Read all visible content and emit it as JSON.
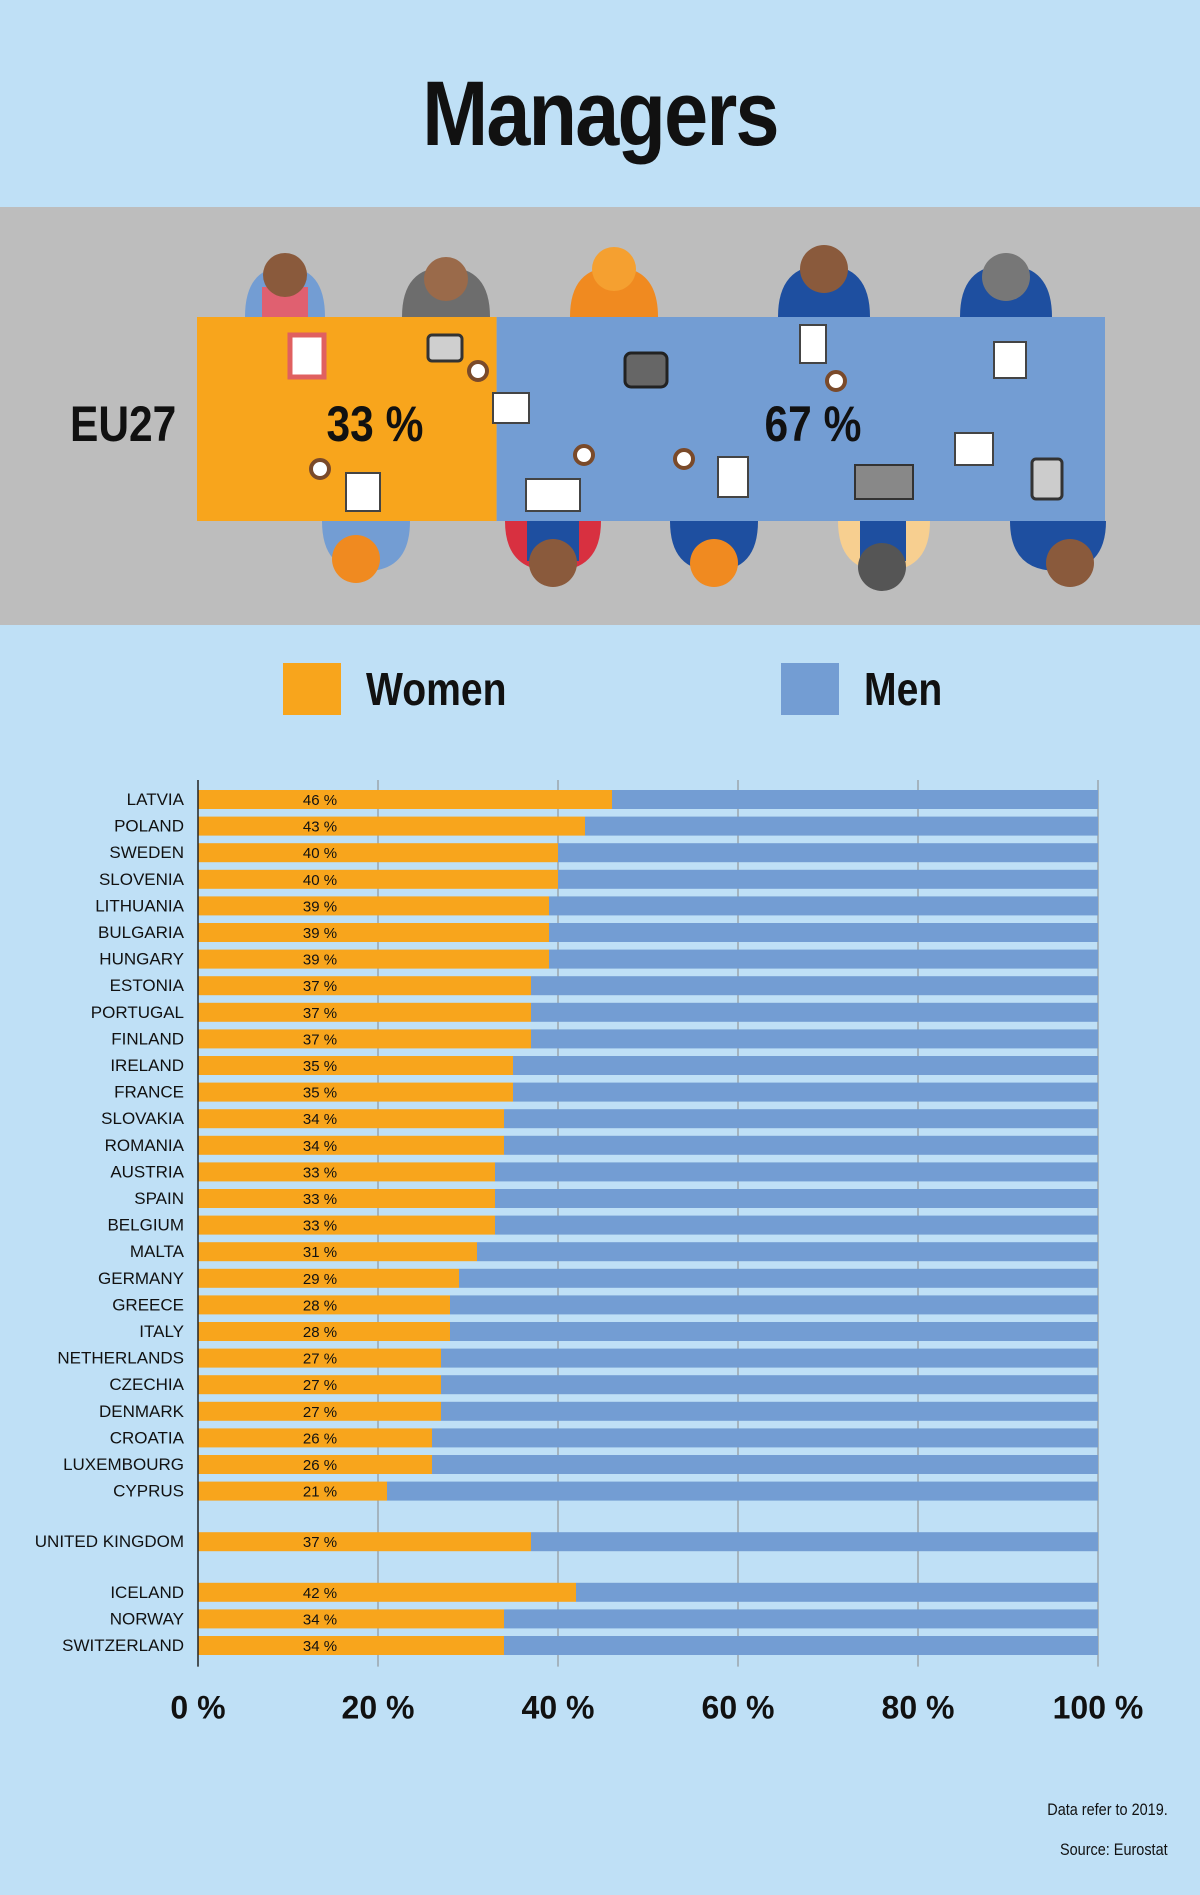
{
  "title": "Managers",
  "eu27": {
    "label": "EU27",
    "women_value": 33,
    "men_value": 67,
    "women_text": "33 %",
    "men_text": "67 %"
  },
  "legend": {
    "women": "Women",
    "men": "Men"
  },
  "colors": {
    "women": "#f8a51c",
    "men": "#739dd3",
    "background": "#bfe0f6",
    "banner": "#bdbdbd"
  },
  "notes": {
    "data_year": "Data refer to 2019.",
    "source": "Source: Eurostat"
  },
  "chart_data": {
    "type": "bar",
    "orientation": "horizontal",
    "stacked": true,
    "xlim": [
      0,
      100
    ],
    "x_ticks": [
      "0 %",
      "20 %",
      "40 %",
      "60 %",
      "80 %",
      "100 %"
    ],
    "grid": true,
    "groups": [
      {
        "categories": [
          "LATVIA",
          "POLAND",
          "SWEDEN",
          "SLOVENIA",
          "LITHUANIA",
          "BULGARIA",
          "HUNGARY",
          "ESTONIA",
          "PORTUGAL",
          "FINLAND",
          "IRELAND",
          "FRANCE",
          "SLOVAKIA",
          "ROMANIA",
          "AUSTRIA",
          "SPAIN",
          "BELGIUM",
          "MALTA",
          "GERMANY",
          "GREECE",
          "ITALY",
          "NETHERLANDS",
          "CZECHIA",
          "DENMARK",
          "CROATIA",
          "LUXEMBOURG",
          "CYPRUS"
        ],
        "women": [
          46,
          43,
          40,
          40,
          39,
          39,
          39,
          37,
          37,
          37,
          35,
          35,
          34,
          34,
          33,
          33,
          33,
          31,
          29,
          28,
          28,
          27,
          27,
          27,
          26,
          26,
          21
        ]
      },
      {
        "categories": [
          "UNITED KINGDOM"
        ],
        "women": [
          37
        ]
      },
      {
        "categories": [
          "ICELAND",
          "NORWAY",
          "SWITZERLAND"
        ],
        "women": [
          42,
          34,
          34
        ]
      }
    ],
    "series": [
      {
        "name": "Women",
        "color": "#f8a51c"
      },
      {
        "name": "Men",
        "color": "#739dd3"
      }
    ],
    "value_suffix": " %"
  }
}
